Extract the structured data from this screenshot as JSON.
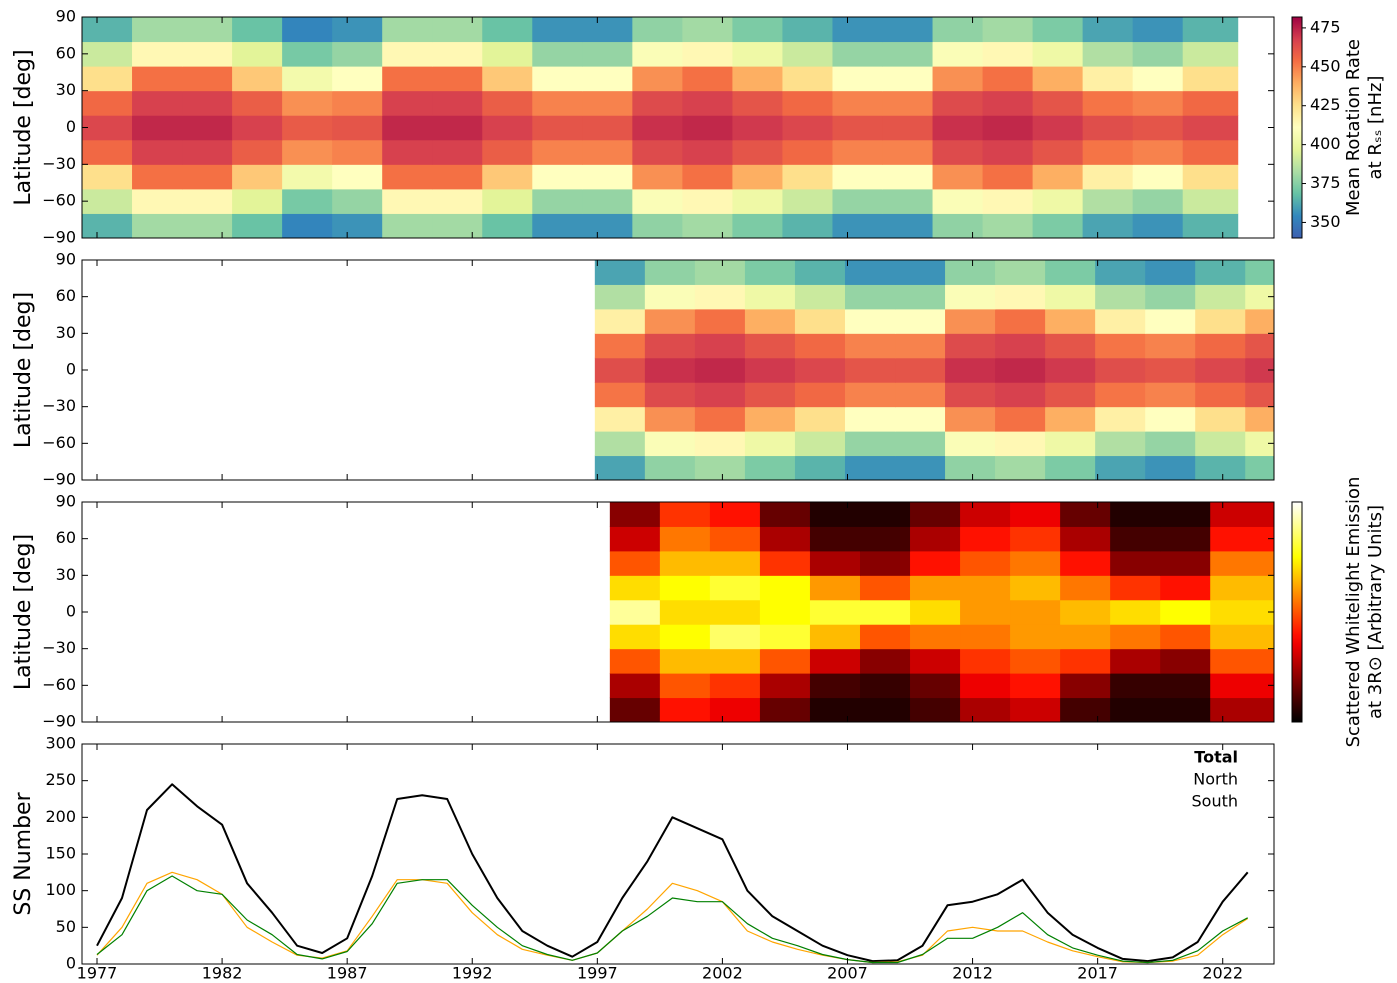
{
  "chart_data": [
    {
      "type": "heatmap",
      "y_label": "Latitude [deg]",
      "colormap": "spectral_r",
      "xlim": [
        1976.4,
        2024.05
      ],
      "ylim": [
        -90,
        90
      ],
      "yticks": [
        {
          "value": -90,
          "label": "−90"
        },
        {
          "value": -60,
          "label": "−60"
        },
        {
          "value": -30,
          "label": "−30"
        },
        0,
        30,
        60,
        90
      ],
      "x_edges": [
        1976.4,
        1978.4,
        1980.4,
        1982.4,
        1984.4,
        1986.4,
        1988.4,
        1990.4,
        1992.4,
        1994.4,
        1996.4,
        1998.4,
        2000.4,
        2002.4,
        2004.4,
        2006.4,
        2008.4,
        2010.4,
        2012.4,
        2014.4,
        2016.4,
        2018.4,
        2020.4,
        2022.6
      ],
      "y_edges": [
        -90,
        -70,
        -50,
        -30,
        -10,
        10,
        30,
        50,
        70,
        90
      ],
      "z": [
        [
          365,
          381,
          381,
          369,
          353,
          357,
          381,
          381,
          369,
          357,
          357,
          377,
          381,
          373,
          365,
          357,
          357,
          377,
          381,
          373,
          361,
          357,
          365
        ],
        [
          390,
          414,
          414,
          396,
          372,
          378,
          414,
          414,
          396,
          378,
          378,
          408,
          414,
          402,
          390,
          378,
          378,
          408,
          414,
          402,
          384,
          378,
          390
        ],
        [
          425,
          453,
          453,
          432,
          404,
          411,
          453,
          453,
          432,
          411,
          411,
          446,
          453,
          439,
          425,
          411,
          411,
          446,
          453,
          439,
          418,
          411,
          425
        ],
        [
          455,
          467,
          467,
          458,
          446,
          449,
          467,
          467,
          458,
          449,
          449,
          464,
          467,
          461,
          455,
          449,
          449,
          464,
          467,
          461,
          452,
          449,
          455
        ],
        [
          465,
          473,
          473,
          467,
          459,
          461,
          473,
          473,
          467,
          461,
          461,
          471,
          473,
          469,
          465,
          461,
          461,
          471,
          473,
          469,
          463,
          461,
          465
        ],
        [
          455,
          467,
          467,
          458,
          446,
          449,
          467,
          467,
          458,
          449,
          449,
          464,
          467,
          461,
          455,
          449,
          449,
          464,
          467,
          461,
          452,
          449,
          455
        ],
        [
          425,
          453,
          453,
          432,
          404,
          411,
          453,
          453,
          432,
          411,
          411,
          446,
          453,
          439,
          425,
          411,
          411,
          446,
          453,
          439,
          418,
          411,
          425
        ],
        [
          390,
          414,
          414,
          396,
          372,
          378,
          414,
          414,
          396,
          378,
          378,
          408,
          414,
          402,
          390,
          378,
          378,
          408,
          414,
          402,
          384,
          378,
          390
        ],
        [
          365,
          381,
          381,
          369,
          353,
          357,
          381,
          381,
          369,
          357,
          357,
          377,
          381,
          373,
          365,
          357,
          357,
          377,
          381,
          373,
          361,
          357,
          365
        ]
      ],
      "clim": [
        340,
        482
      ],
      "colorbar": {
        "label": [
          "Mean Rotation Rate",
          "at Rₛₛ [nHz]"
        ],
        "ticks": [
          350,
          375,
          400,
          425,
          450,
          475
        ]
      }
    },
    {
      "type": "heatmap",
      "y_label": "Latitude [deg]",
      "colormap": "spectral_r",
      "xlim": [
        1976.4,
        2024.05
      ],
      "ylim": [
        -90,
        90
      ],
      "yticks": [
        {
          "value": -90,
          "label": "−90"
        },
        {
          "value": -60,
          "label": "−60"
        },
        {
          "value": -30,
          "label": "−30"
        },
        0,
        30,
        60,
        90
      ],
      "x_edges": [
        1996.9,
        1998.9,
        2000.9,
        2002.9,
        2004.9,
        2006.9,
        2008.9,
        2010.9,
        2012.9,
        2014.9,
        2016.9,
        2018.9,
        2020.9,
        2022.9,
        2024.05
      ],
      "y_edges": [
        -90,
        -70,
        -50,
        -30,
        -10,
        10,
        30,
        50,
        70,
        90
      ],
      "z": [
        [
          361,
          377,
          381,
          373,
          365,
          357,
          357,
          377,
          381,
          373,
          361,
          357,
          365,
          373
        ],
        [
          384,
          408,
          414,
          402,
          390,
          378,
          378,
          408,
          414,
          402,
          384,
          378,
          390,
          402
        ],
        [
          418,
          446,
          453,
          439,
          425,
          411,
          411,
          446,
          453,
          439,
          418,
          411,
          425,
          439
        ],
        [
          452,
          464,
          467,
          461,
          455,
          449,
          449,
          464,
          467,
          461,
          452,
          449,
          455,
          461
        ],
        [
          463,
          471,
          473,
          469,
          465,
          461,
          461,
          471,
          473,
          469,
          463,
          461,
          465,
          469
        ],
        [
          452,
          464,
          467,
          461,
          455,
          449,
          449,
          464,
          467,
          461,
          452,
          449,
          455,
          461
        ],
        [
          418,
          446,
          453,
          439,
          425,
          411,
          411,
          446,
          453,
          439,
          418,
          411,
          425,
          439
        ],
        [
          384,
          408,
          414,
          402,
          390,
          378,
          378,
          408,
          414,
          402,
          384,
          378,
          390,
          402
        ],
        [
          361,
          377,
          381,
          373,
          365,
          357,
          357,
          377,
          381,
          373,
          361,
          357,
          365,
          373
        ]
      ],
      "clim": [
        340,
        482
      ]
    },
    {
      "type": "heatmap",
      "y_label": "Latitude [deg]",
      "colormap": "hot",
      "xlim": [
        1976.4,
        2024.05
      ],
      "ylim": [
        -90,
        90
      ],
      "yticks": [
        {
          "value": -90,
          "label": "−90"
        },
        {
          "value": -60,
          "label": "−60"
        },
        {
          "value": -30,
          "label": "−30"
        },
        0,
        30,
        60,
        90
      ],
      "x_edges": [
        1997.5,
        1999.5,
        2001.5,
        2003.5,
        2005.5,
        2007.5,
        2009.5,
        2011.5,
        2013.5,
        2015.5,
        2017.5,
        2019.5,
        2021.5,
        2024.05
      ],
      "y_edges": [
        -90,
        -70,
        -50,
        -30,
        -10,
        10,
        30,
        50,
        70,
        90
      ],
      "z": [
        [
          0.15,
          0.4,
          0.35,
          0.15,
          0.05,
          0.05,
          0.1,
          0.25,
          0.3,
          0.1,
          0.05,
          0.05,
          0.25
        ],
        [
          0.25,
          0.5,
          0.45,
          0.25,
          0.1,
          0.08,
          0.15,
          0.35,
          0.4,
          0.2,
          0.08,
          0.08,
          0.35
        ],
        [
          0.5,
          0.65,
          0.65,
          0.5,
          0.3,
          0.2,
          0.3,
          0.45,
          0.5,
          0.45,
          0.25,
          0.2,
          0.5
        ],
        [
          0.7,
          0.75,
          0.85,
          0.8,
          0.65,
          0.5,
          0.55,
          0.55,
          0.6,
          0.6,
          0.55,
          0.5,
          0.65
        ],
        [
          0.9,
          0.7,
          0.7,
          0.75,
          0.8,
          0.8,
          0.7,
          0.6,
          0.6,
          0.65,
          0.7,
          0.75,
          0.7
        ],
        [
          0.7,
          0.75,
          0.8,
          0.75,
          0.6,
          0.5,
          0.6,
          0.6,
          0.65,
          0.55,
          0.45,
          0.4,
          0.65
        ],
        [
          0.5,
          0.65,
          0.65,
          0.45,
          0.25,
          0.2,
          0.4,
          0.5,
          0.55,
          0.4,
          0.2,
          0.2,
          0.55
        ],
        [
          0.3,
          0.55,
          0.5,
          0.25,
          0.1,
          0.1,
          0.25,
          0.4,
          0.45,
          0.25,
          0.1,
          0.1,
          0.4
        ],
        [
          0.2,
          0.45,
          0.4,
          0.15,
          0.05,
          0.05,
          0.15,
          0.3,
          0.35,
          0.15,
          0.05,
          0.05,
          0.3
        ]
      ],
      "clim": [
        0,
        1
      ],
      "colorbar": {
        "label": [
          "Scattered Whitelight Emission",
          "at 3R⊙ [Arbitrary Units]"
        ]
      }
    },
    {
      "type": "line",
      "y_label": "SS Number",
      "legend": "upper right",
      "xlim": [
        1976.4,
        2024.05
      ],
      "ylim": [
        0,
        300
      ],
      "xticks": [
        1977,
        1982,
        1987,
        1992,
        1997,
        2002,
        2007,
        2012,
        2017,
        2022
      ],
      "yticks": [
        0,
        50,
        100,
        150,
        200,
        250,
        300
      ],
      "x": [
        1977,
        1978,
        1979,
        1980,
        1981,
        1982,
        1983,
        1984,
        1985,
        1986,
        1987,
        1988,
        1989,
        1990,
        1991,
        1992,
        1993,
        1994,
        1995,
        1996,
        1997,
        1998,
        1999,
        2000,
        2001,
        2002,
        2003,
        2004,
        2005,
        2006,
        2007,
        2008,
        2009,
        2010,
        2011,
        2012,
        2013,
        2014,
        2015,
        2016,
        2017,
        2018,
        2019,
        2020,
        2021,
        2022,
        2023
      ],
      "series": [
        {
          "name": "Total",
          "color": "#000000",
          "values": [
            25,
            90,
            210,
            245,
            215,
            190,
            110,
            70,
            25,
            15,
            35,
            120,
            225,
            230,
            225,
            150,
            90,
            45,
            25,
            10,
            30,
            90,
            140,
            200,
            185,
            170,
            100,
            65,
            45,
            25,
            12,
            4,
            5,
            25,
            80,
            85,
            95,
            115,
            70,
            40,
            22,
            7,
            4,
            9,
            30,
            85,
            125
          ]
        },
        {
          "name": "North",
          "color": "#ffa500",
          "values": [
            12,
            50,
            110,
            125,
            115,
            95,
            50,
            30,
            12,
            8,
            18,
            65,
            115,
            115,
            110,
            70,
            40,
            20,
            12,
            5,
            15,
            45,
            75,
            110,
            100,
            85,
            45,
            30,
            20,
            12,
            6,
            2,
            3,
            12,
            45,
            50,
            45,
            45,
            30,
            18,
            10,
            3,
            2,
            4,
            12,
            40,
            62
          ]
        },
        {
          "name": "South",
          "color": "#008000",
          "values": [
            13,
            40,
            100,
            120,
            100,
            95,
            60,
            40,
            13,
            7,
            17,
            55,
            110,
            115,
            115,
            80,
            50,
            25,
            13,
            5,
            15,
            45,
            65,
            90,
            85,
            85,
            55,
            35,
            25,
            13,
            6,
            2,
            2,
            13,
            35,
            35,
            50,
            70,
            40,
            22,
            12,
            4,
            2,
            5,
            18,
            45,
            63
          ]
        }
      ]
    }
  ]
}
